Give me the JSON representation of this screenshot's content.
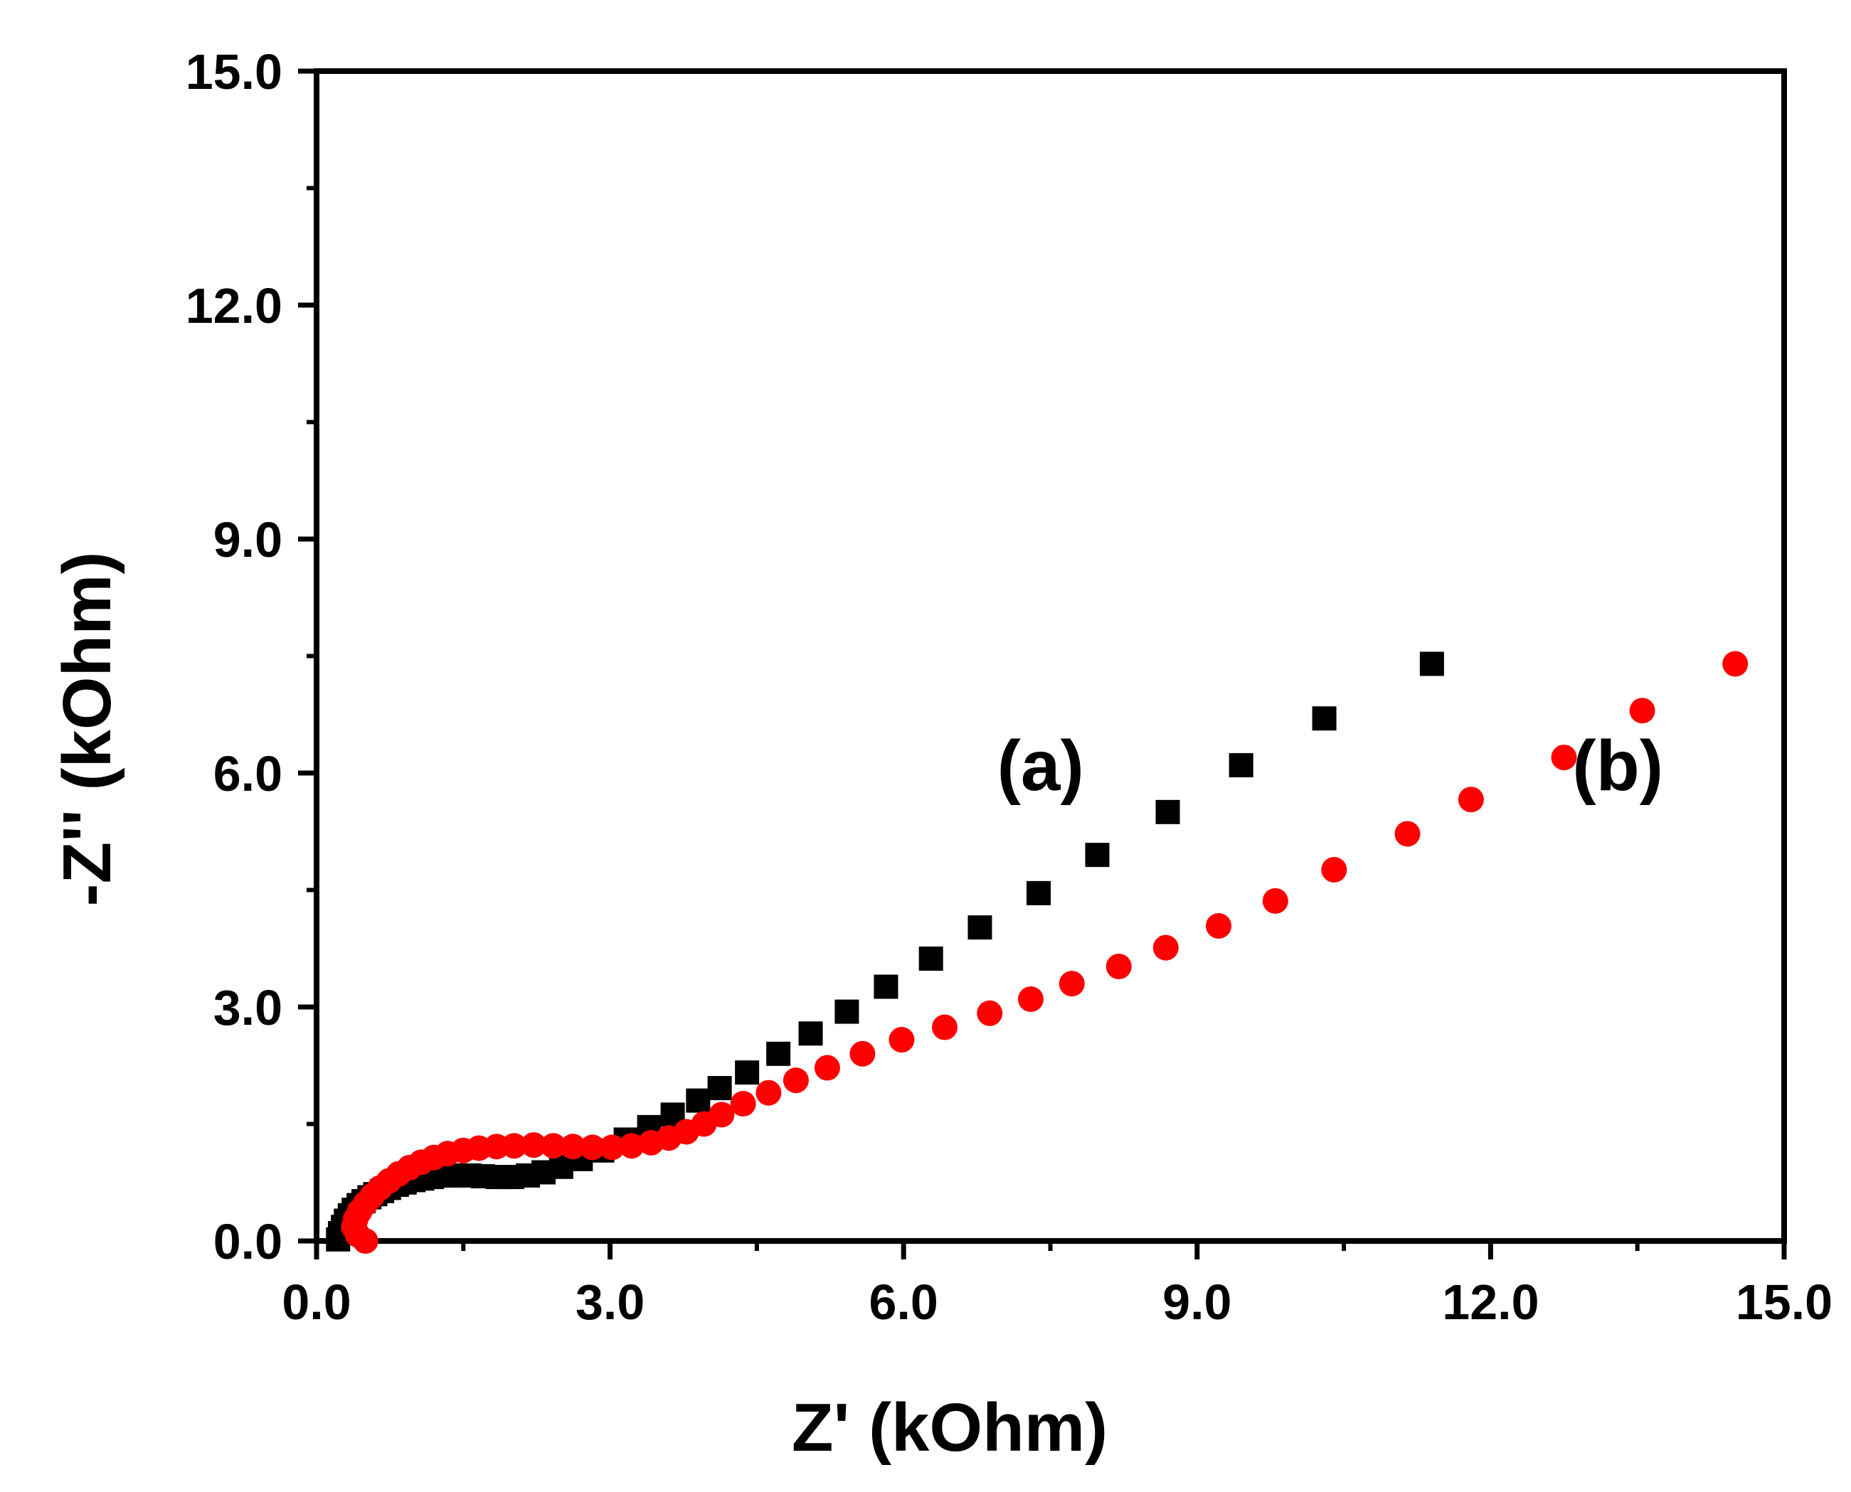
{
  "chart_data": {
    "type": "scatter",
    "title": "",
    "xlabel": "Z' (kOhm)",
    "ylabel": "-Z'' (kOhm)",
    "xlim": [
      0.0,
      15.0
    ],
    "ylim": [
      0.0,
      15.0
    ],
    "xticks": [
      0.0,
      3.0,
      6.0,
      9.0,
      12.0,
      15.0
    ],
    "yticks": [
      0.0,
      3.0,
      6.0,
      9.0,
      12.0,
      15.0
    ],
    "xtick_labels": [
      "0.0",
      "3.0",
      "6.0",
      "9.0",
      "12.0",
      "15.0"
    ],
    "ytick_labels": [
      "0.0",
      "3.0",
      "6.0",
      "9.0",
      "12.0",
      "15.0"
    ],
    "grid": false,
    "legend": "none",
    "series": [
      {
        "name": "(a)",
        "label": "(a)",
        "marker": "square",
        "color": "#000000",
        "label_at": [
          7.4,
          6.1
        ],
        "x": [
          0.22,
          0.24,
          0.27,
          0.3,
          0.34,
          0.38,
          0.43,
          0.48,
          0.54,
          0.6,
          0.67,
          0.74,
          0.82,
          0.9,
          0.99,
          1.08,
          1.18,
          1.3,
          1.42,
          1.56,
          1.7,
          1.85,
          2.0,
          2.16,
          2.32,
          2.5,
          2.7,
          2.92,
          3.16,
          3.4,
          3.64,
          3.9,
          4.12,
          4.4,
          4.72,
          5.05,
          5.42,
          5.82,
          6.28,
          6.78,
          7.38,
          7.98,
          8.7,
          9.45,
          10.3,
          11.4
        ],
        "y": [
          0.02,
          0.1,
          0.18,
          0.26,
          0.33,
          0.4,
          0.46,
          0.51,
          0.56,
          0.6,
          0.64,
          0.68,
          0.72,
          0.75,
          0.78,
          0.8,
          0.82,
          0.84,
          0.84,
          0.84,
          0.83,
          0.82,
          0.82,
          0.84,
          0.88,
          0.95,
          1.05,
          1.16,
          1.3,
          1.46,
          1.62,
          1.8,
          1.96,
          2.16,
          2.4,
          2.66,
          2.94,
          3.26,
          3.62,
          4.02,
          4.46,
          4.95,
          5.5,
          6.1,
          6.7,
          7.4
        ]
      },
      {
        "name": "(b)",
        "label": "(b)",
        "marker": "circle",
        "color": "#ff0000",
        "label_at": [
          13.3,
          6.1
        ],
        "x": [
          0.5,
          0.42,
          0.38,
          0.4,
          0.44,
          0.5,
          0.57,
          0.65,
          0.74,
          0.84,
          0.95,
          1.07,
          1.2,
          1.34,
          1.5,
          1.66,
          1.84,
          2.02,
          2.22,
          2.42,
          2.62,
          2.82,
          3.02,
          3.22,
          3.42,
          3.6,
          3.78,
          3.96,
          4.14,
          4.36,
          4.62,
          4.9,
          5.22,
          5.58,
          5.98,
          6.42,
          6.88,
          7.3,
          7.72,
          8.2,
          8.68,
          9.22,
          9.8,
          10.4,
          11.15,
          11.8,
          12.75,
          13.55,
          14.5
        ],
        "y": [
          0.0,
          0.08,
          0.18,
          0.28,
          0.38,
          0.48,
          0.58,
          0.68,
          0.77,
          0.86,
          0.94,
          1.01,
          1.07,
          1.12,
          1.16,
          1.19,
          1.21,
          1.22,
          1.23,
          1.22,
          1.21,
          1.2,
          1.2,
          1.22,
          1.26,
          1.32,
          1.4,
          1.5,
          1.62,
          1.76,
          1.9,
          2.06,
          2.22,
          2.4,
          2.58,
          2.74,
          2.92,
          3.1,
          3.3,
          3.52,
          3.76,
          4.04,
          4.36,
          4.76,
          5.22,
          5.66,
          6.2,
          6.8,
          7.4
        ]
      }
    ]
  }
}
